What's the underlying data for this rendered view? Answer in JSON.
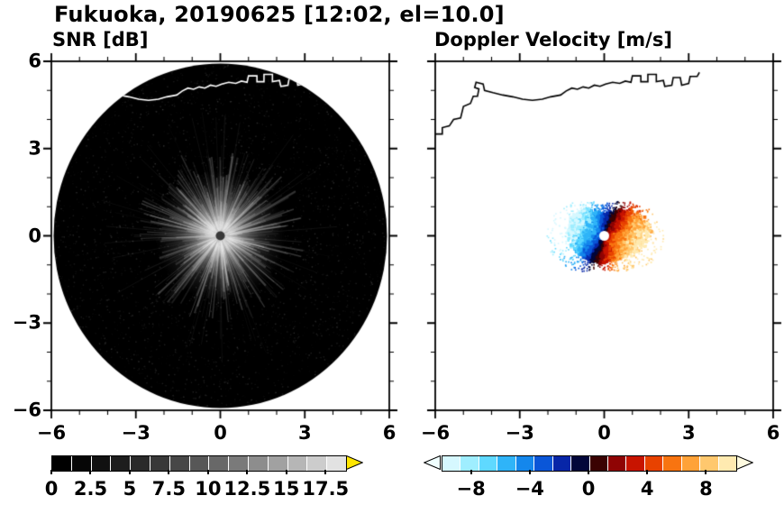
{
  "header": {
    "title": "Fukuoka, 20190625 [12:02, el=10.0]"
  },
  "chart_data": [
    {
      "type": "heatmap",
      "title": "SNR [dB]",
      "xlabel": "",
      "ylabel": "",
      "xlim": [
        -6,
        6
      ],
      "ylim": [
        -6,
        6
      ],
      "xticks": [
        -6,
        -3,
        0,
        3,
        6
      ],
      "yticks": [
        6,
        3,
        0,
        -3,
        -6
      ],
      "grid": false,
      "description": "PPI radar scan: black circular sweep area of radius ~5.9 centered on the radar; bright grayscale echo blob with radial streaks within ~2.5 of the center, faint speckle noise elsewhere; small dark dot at the radar position; white coastline traced across the top of the scan near y=5.",
      "colorbar": {
        "range": [
          0,
          18.75
        ],
        "ticks": [
          0,
          2.5,
          5,
          7.5,
          10,
          12.5,
          15,
          17.5
        ],
        "segments": [
          "#000000",
          "#060606",
          "#111111",
          "#1d1d1d",
          "#2a2a2a",
          "#383838",
          "#474747",
          "#575757",
          "#686868",
          "#7a7a7a",
          "#8d8d8d",
          "#a1a1a1",
          "#b6b6b6",
          "#cccccc",
          "#e2e2e2"
        ],
        "over_arrow": "#ffe600"
      }
    },
    {
      "type": "heatmap",
      "title": "Doppler Velocity [m/s]",
      "xlabel": "",
      "ylabel": "",
      "xlim": [
        -6,
        6
      ],
      "ylim": [
        -6,
        6
      ],
      "xticks": [
        -6,
        -3,
        0,
        3,
        6
      ],
      "yticks": [
        6,
        3,
        0,
        -3,
        -6
      ],
      "grid": false,
      "description": "Doppler velocity field within ~1.5 of the radar: negative velocities (blue/cyan, toward radar) on the west-north side, positive velocities (red-orange-yellow, away) on the east-south side, dark hues along the zero isodop; small white gap at the radar position; black coastline across the top near y=5.",
      "colorbar": {
        "range": [
          -10,
          10
        ],
        "ticks": [
          -8,
          -4,
          0,
          4,
          8
        ],
        "segments": [
          "#d6f8ff",
          "#9feeff",
          "#5fd9ff",
          "#2fb4f8",
          "#1487ec",
          "#0a56d8",
          "#0726a8",
          "#02063a",
          "#3a0202",
          "#8f0404",
          "#c81400",
          "#e84200",
          "#f87410",
          "#ffa238",
          "#ffc86e",
          "#ffeab0"
        ],
        "under_arrow": "#f0ffff",
        "over_arrow": "#fffbe0"
      }
    }
  ]
}
